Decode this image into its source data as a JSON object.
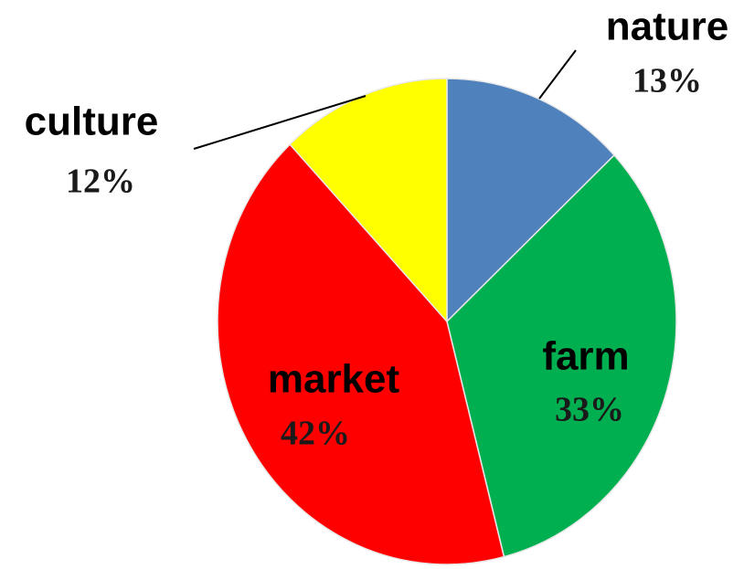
{
  "chart_data": {
    "type": "pie",
    "categories": [
      "nature",
      "farm",
      "market",
      "culture"
    ],
    "values": [
      13,
      33,
      42,
      12
    ],
    "value_labels": [
      "13%",
      "33%",
      "42%",
      "12%"
    ],
    "colors": [
      "#4f81bd",
      "#00b050",
      "#ff0000",
      "#ffff00"
    ]
  }
}
